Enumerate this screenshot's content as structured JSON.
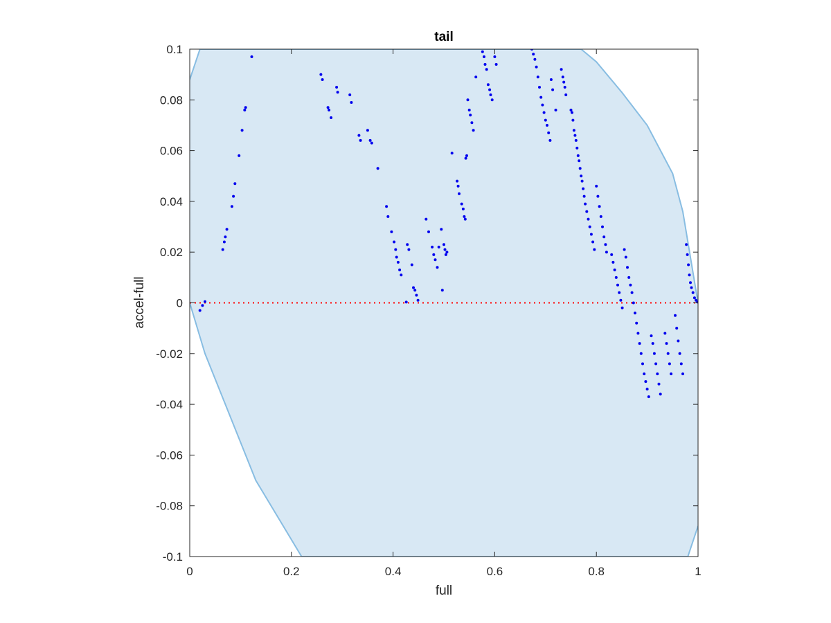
{
  "chart_data": {
    "type": "scatter",
    "title": "tail",
    "xlabel": "full",
    "ylabel": "accel-full",
    "xlim": [
      0,
      1
    ],
    "ylim": [
      -0.1,
      0.1
    ],
    "xticks": [
      0,
      0.2,
      0.4,
      0.6,
      0.8,
      1
    ],
    "xtick_labels": [
      "0",
      "0.2",
      "0.4",
      "0.6",
      "0.8",
      "1"
    ],
    "yticks": [
      0.1,
      0.08,
      0.06,
      0.04,
      0.02,
      0,
      -0.02,
      -0.04,
      -0.06,
      -0.08,
      -0.1
    ],
    "ytick_labels": [
      "0.1",
      "0.08",
      "0.06",
      "0.04",
      "0.02",
      "0",
      "-0.02",
      "-0.04",
      "-0.06",
      "-0.08",
      "-0.1"
    ],
    "grid": false,
    "colors": {
      "points": "#0000ee",
      "band_fill": "#d8e8f4",
      "band_edge": "#88bde2",
      "reference_line": "#ff0000"
    },
    "reference_line": {
      "y": 0,
      "style": "dotted"
    },
    "band": {
      "upper_edge": [
        [
          0,
          0.088
        ],
        [
          0.02,
          0.1
        ],
        [
          0.77,
          0.1
        ],
        [
          0.8,
          0.095
        ],
        [
          0.85,
          0.083
        ],
        [
          0.9,
          0.07
        ],
        [
          0.95,
          0.051
        ],
        [
          0.97,
          0.036
        ],
        [
          1.0,
          0.0
        ]
      ],
      "lower_edge": [
        [
          0.0,
          0.0
        ],
        [
          0.03,
          -0.02
        ],
        [
          0.07,
          -0.04
        ],
        [
          0.13,
          -0.07
        ],
        [
          0.22,
          -0.1
        ],
        [
          0.98,
          -0.1
        ],
        [
          1.0,
          -0.088
        ]
      ]
    },
    "points": [
      [
        0.02,
        -0.003
      ],
      [
        0.025,
        -0.001
      ],
      [
        0.03,
        0.0005
      ],
      [
        0.065,
        0.021
      ],
      [
        0.068,
        0.024
      ],
      [
        0.07,
        0.026
      ],
      [
        0.073,
        0.029
      ],
      [
        0.083,
        0.038
      ],
      [
        0.086,
        0.042
      ],
      [
        0.089,
        0.047
      ],
      [
        0.097,
        0.058
      ],
      [
        0.103,
        0.068
      ],
      [
        0.108,
        0.076
      ],
      [
        0.11,
        0.077
      ],
      [
        0.122,
        0.097
      ],
      [
        0.258,
        0.09
      ],
      [
        0.261,
        0.088
      ],
      [
        0.272,
        0.077
      ],
      [
        0.274,
        0.076
      ],
      [
        0.278,
        0.073
      ],
      [
        0.289,
        0.085
      ],
      [
        0.291,
        0.083
      ],
      [
        0.315,
        0.082
      ],
      [
        0.318,
        0.079
      ],
      [
        0.333,
        0.066
      ],
      [
        0.336,
        0.064
      ],
      [
        0.35,
        0.068
      ],
      [
        0.355,
        0.064
      ],
      [
        0.358,
        0.063
      ],
      [
        0.37,
        0.053
      ],
      [
        0.387,
        0.038
      ],
      [
        0.39,
        0.034
      ],
      [
        0.397,
        0.028
      ],
      [
        0.402,
        0.024
      ],
      [
        0.405,
        0.021
      ],
      [
        0.407,
        0.018
      ],
      [
        0.41,
        0.016
      ],
      [
        0.413,
        0.013
      ],
      [
        0.416,
        0.011
      ],
      [
        0.426,
        0.0003
      ],
      [
        0.428,
        0.023
      ],
      [
        0.431,
        0.021
      ],
      [
        0.437,
        0.015
      ],
      [
        0.44,
        0.006
      ],
      [
        0.443,
        0.005
      ],
      [
        0.446,
        0.003
      ],
      [
        0.449,
        0.001
      ],
      [
        0.465,
        0.033
      ],
      [
        0.47,
        0.028
      ],
      [
        0.477,
        0.022
      ],
      [
        0.48,
        0.019
      ],
      [
        0.483,
        0.017
      ],
      [
        0.487,
        0.014
      ],
      [
        0.49,
        0.022
      ],
      [
        0.495,
        0.029
      ],
      [
        0.497,
        0.005
      ],
      [
        0.5,
        0.023
      ],
      [
        0.502,
        0.021
      ],
      [
        0.504,
        0.019
      ],
      [
        0.506,
        0.02
      ],
      [
        0.516,
        0.059
      ],
      [
        0.526,
        0.048
      ],
      [
        0.528,
        0.046
      ],
      [
        0.53,
        0.043
      ],
      [
        0.535,
        0.039
      ],
      [
        0.538,
        0.037
      ],
      [
        0.54,
        0.034
      ],
      [
        0.542,
        0.033
      ],
      [
        0.543,
        0.057
      ],
      [
        0.545,
        0.058
      ],
      [
        0.547,
        0.08
      ],
      [
        0.55,
        0.076
      ],
      [
        0.552,
        0.074
      ],
      [
        0.555,
        0.071
      ],
      [
        0.558,
        0.068
      ],
      [
        0.563,
        0.089
      ],
      [
        0.576,
        0.099
      ],
      [
        0.579,
        0.097
      ],
      [
        0.581,
        0.094
      ],
      [
        0.584,
        0.092
      ],
      [
        0.587,
        0.086
      ],
      [
        0.59,
        0.084
      ],
      [
        0.592,
        0.082
      ],
      [
        0.595,
        0.08
      ],
      [
        0.6,
        0.097
      ],
      [
        0.603,
        0.094
      ],
      [
        0.673,
        0.1
      ],
      [
        0.676,
        0.098
      ],
      [
        0.679,
        0.096
      ],
      [
        0.682,
        0.093
      ],
      [
        0.685,
        0.089
      ],
      [
        0.688,
        0.085
      ],
      [
        0.691,
        0.081
      ],
      [
        0.694,
        0.078
      ],
      [
        0.697,
        0.075
      ],
      [
        0.7,
        0.072
      ],
      [
        0.703,
        0.07
      ],
      [
        0.706,
        0.067
      ],
      [
        0.709,
        0.064
      ],
      [
        0.711,
        0.088
      ],
      [
        0.714,
        0.084
      ],
      [
        0.72,
        0.076
      ],
      [
        0.731,
        0.092
      ],
      [
        0.734,
        0.089
      ],
      [
        0.736,
        0.087
      ],
      [
        0.738,
        0.085
      ],
      [
        0.74,
        0.082
      ],
      [
        0.75,
        0.076
      ],
      [
        0.752,
        0.075
      ],
      [
        0.754,
        0.072
      ],
      [
        0.756,
        0.068
      ],
      [
        0.758,
        0.066
      ],
      [
        0.76,
        0.064
      ],
      [
        0.762,
        0.061
      ],
      [
        0.764,
        0.058
      ],
      [
        0.766,
        0.056
      ],
      [
        0.768,
        0.053
      ],
      [
        0.77,
        0.05
      ],
      [
        0.772,
        0.048
      ],
      [
        0.774,
        0.045
      ],
      [
        0.776,
        0.042
      ],
      [
        0.778,
        0.039
      ],
      [
        0.781,
        0.036
      ],
      [
        0.784,
        0.033
      ],
      [
        0.787,
        0.03
      ],
      [
        0.79,
        0.027
      ],
      [
        0.793,
        0.024
      ],
      [
        0.796,
        0.021
      ],
      [
        0.8,
        0.046
      ],
      [
        0.803,
        0.042
      ],
      [
        0.806,
        0.038
      ],
      [
        0.809,
        0.034
      ],
      [
        0.812,
        0.03
      ],
      [
        0.815,
        0.026
      ],
      [
        0.818,
        0.023
      ],
      [
        0.82,
        0.02
      ],
      [
        0.83,
        0.019
      ],
      [
        0.833,
        0.016
      ],
      [
        0.836,
        0.013
      ],
      [
        0.839,
        0.01
      ],
      [
        0.842,
        0.007
      ],
      [
        0.845,
        0.004
      ],
      [
        0.848,
        0.001
      ],
      [
        0.851,
        -0.002
      ],
      [
        0.855,
        0.021
      ],
      [
        0.858,
        0.018
      ],
      [
        0.861,
        0.014
      ],
      [
        0.864,
        0.01
      ],
      [
        0.867,
        0.007
      ],
      [
        0.87,
        0.004
      ],
      [
        0.873,
        0.0
      ],
      [
        0.876,
        -0.004
      ],
      [
        0.879,
        -0.008
      ],
      [
        0.882,
        -0.012
      ],
      [
        0.885,
        -0.016
      ],
      [
        0.888,
        -0.02
      ],
      [
        0.891,
        -0.024
      ],
      [
        0.894,
        -0.028
      ],
      [
        0.897,
        -0.031
      ],
      [
        0.9,
        -0.034
      ],
      [
        0.903,
        -0.037
      ],
      [
        0.908,
        -0.013
      ],
      [
        0.911,
        -0.016
      ],
      [
        0.914,
        -0.02
      ],
      [
        0.917,
        -0.024
      ],
      [
        0.92,
        -0.028
      ],
      [
        0.923,
        -0.032
      ],
      [
        0.926,
        -0.036
      ],
      [
        0.935,
        -0.012
      ],
      [
        0.938,
        -0.016
      ],
      [
        0.941,
        -0.02
      ],
      [
        0.944,
        -0.024
      ],
      [
        0.947,
        -0.028
      ],
      [
        0.955,
        -0.005
      ],
      [
        0.958,
        -0.01
      ],
      [
        0.961,
        -0.015
      ],
      [
        0.964,
        -0.02
      ],
      [
        0.967,
        -0.024
      ],
      [
        0.97,
        -0.028
      ],
      [
        0.977,
        0.023
      ],
      [
        0.979,
        0.019
      ],
      [
        0.981,
        0.015
      ],
      [
        0.983,
        0.011
      ],
      [
        0.985,
        0.008
      ],
      [
        0.987,
        0.006
      ],
      [
        0.99,
        0.004
      ],
      [
        0.993,
        0.002
      ],
      [
        0.996,
        0.001
      ],
      [
        0.999,
        0.0003
      ]
    ]
  }
}
